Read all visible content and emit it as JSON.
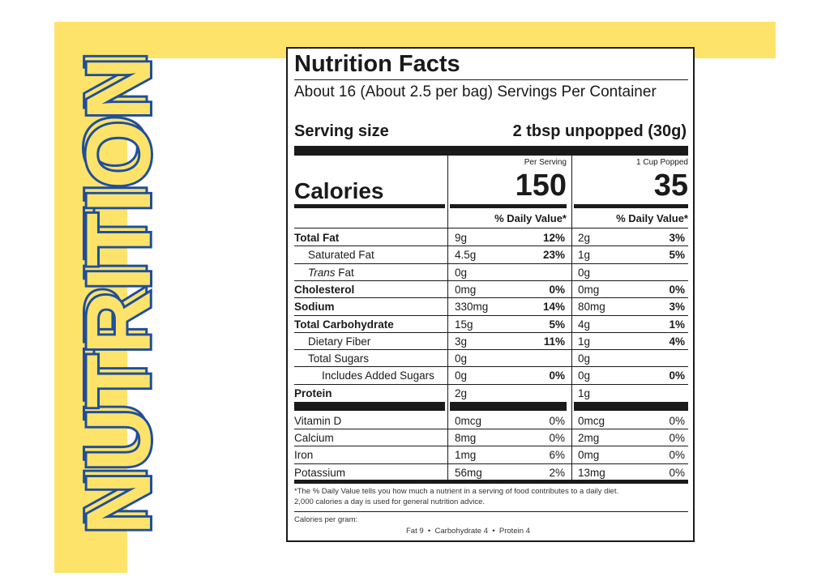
{
  "side_title": "NUTRITION",
  "label": {
    "title": "Nutrition Facts",
    "servings": "About 16 (About 2.5 per bag) Servings Per Container",
    "serving_size_label": "Serving size",
    "serving_size_value": "2 tbsp unpopped (30g)",
    "calories_label": "Calories",
    "col1_header": "Per Serving",
    "col2_header": "1 Cup Popped",
    "col1_calories": "150",
    "col2_calories": "35",
    "dv_header": "% Daily Value*",
    "nutrients": [
      {
        "name": "Total Fat",
        "bold": true,
        "indent": 0,
        "a1": "9g",
        "p1": "12%",
        "a2": "2g",
        "p2": "3%"
      },
      {
        "name": "Saturated Fat",
        "bold": false,
        "indent": 1,
        "a1": "4.5g",
        "p1": "23%",
        "a2": "1g",
        "p2": "5%"
      },
      {
        "name": "Trans Fat",
        "bold": false,
        "indent": 1,
        "a1": "0g",
        "p1": "",
        "a2": "0g",
        "p2": ""
      },
      {
        "name": "Cholesterol",
        "bold": true,
        "indent": 0,
        "a1": "0mg",
        "p1": "0%",
        "a2": "0mg",
        "p2": "0%"
      },
      {
        "name": "Sodium",
        "bold": true,
        "indent": 0,
        "a1": "330mg",
        "p1": "14%",
        "a2": "80mg",
        "p2": "3%"
      },
      {
        "name": "Total Carbohydrate",
        "bold": true,
        "indent": 0,
        "a1": "15g",
        "p1": "5%",
        "a2": "4g",
        "p2": "1%"
      },
      {
        "name": "Dietary Fiber",
        "bold": false,
        "indent": 1,
        "a1": "3g",
        "p1": "11%",
        "a2": "1g",
        "p2": "4%"
      },
      {
        "name": "Total Sugars",
        "bold": false,
        "indent": 1,
        "a1": "0g",
        "p1": "",
        "a2": "0g",
        "p2": ""
      },
      {
        "name": "Includes Added Sugars",
        "bold": false,
        "indent": 2,
        "a1": "0g",
        "p1": "0%",
        "a2": "0g",
        "p2": "0%"
      },
      {
        "name": "Protein",
        "bold": true,
        "indent": 0,
        "a1": "2g",
        "p1": "",
        "a2": "1g",
        "p2": ""
      }
    ],
    "vitamins": [
      {
        "name": "Vitamin D",
        "a1": "0mcg",
        "p1": "0%",
        "a2": "0mcg",
        "p2": "0%"
      },
      {
        "name": "Calcium",
        "a1": "8mg",
        "p1": "0%",
        "a2": "2mg",
        "p2": "0%"
      },
      {
        "name": "Iron",
        "a1": "1mg",
        "p1": "6%",
        "a2": "0mg",
        "p2": "0%"
      },
      {
        "name": "Potassium",
        "a1": "56mg",
        "p1": "2%",
        "a2": "13mg",
        "p2": "0%"
      }
    ],
    "footnote_line1": "*The % Daily Value tells you how much a nutrient in a serving of food contributes to a daily diet.",
    "footnote_line2": "2,000 calories a day is used for general nutrition advice.",
    "calories_per_gram_label": "Calories per gram:",
    "calories_per_gram_values": "Fat 9  •  Carbohydrate 4  •  Protein 4"
  },
  "colors": {
    "accent_yellow": "#fde36a",
    "title_blue": "#1f4e9c",
    "text": "#1a1a1a"
  }
}
